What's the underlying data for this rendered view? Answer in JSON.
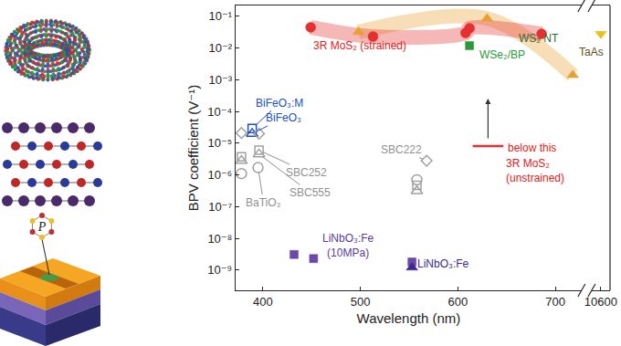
{
  "chart_data": {
    "type": "scatter",
    "x_label": "Wavelength (nm)",
    "y_label": "BPV coefficient (V⁻¹)",
    "log": "y",
    "grid": false,
    "xlim": [
      372,
      727
    ],
    "xticks": [
      400,
      500,
      600,
      700
    ],
    "x2lim": [
      10580,
      10620
    ],
    "x2ticks": [
      10600
    ],
    "ylim": [
      2.3e-10,
      0.22
    ],
    "yticks": [
      {
        "value": 1e-09,
        "label": "10⁻⁹"
      },
      {
        "value": 1e-08,
        "label": "10⁻⁸"
      },
      {
        "value": 1e-07,
        "label": "10⁻⁷"
      },
      {
        "value": 1e-06,
        "label": "10⁻⁶"
      },
      {
        "value": 1e-05,
        "label": "10⁻⁵"
      },
      {
        "value": 0.0001,
        "label": "10⁻⁴"
      },
      {
        "value": 0.001,
        "label": "10⁻³"
      },
      {
        "value": 0.01,
        "label": "10⁻²"
      },
      {
        "value": 0.1,
        "label": "10⁻¹"
      }
    ],
    "series": [
      {
        "name": "WS₂ NT",
        "color": "#e8a030",
        "marker": "triangle-up",
        "line_style": "band",
        "x": [
          498,
          630,
          718
        ],
        "values": [
          0.032,
          0.085,
          0.0014
        ]
      },
      {
        "name": "3R MoS₂ (strained)",
        "color": "#e53030",
        "marker": "circle",
        "line_style": "band",
        "x": [
          449,
          513,
          608,
          612,
          686
        ],
        "values": [
          0.045,
          0.023,
          0.03,
          0.042,
          0.028
        ]
      },
      {
        "name": "WSe₂/BP",
        "color": "#2a9a3a",
        "marker": "square",
        "x": [
          612
        ],
        "values": [
          0.012
        ]
      },
      {
        "name": "TaAs",
        "color": "#e8c020",
        "marker": "triangle-down",
        "axis": "x2",
        "x": [
          10600
        ],
        "values": [
          0.028
        ]
      },
      {
        "name": "BiFeO₃:M",
        "color": "#2050c0",
        "marker": "square-open",
        "x": [
          389
        ],
        "values": [
          2.9e-05
        ]
      },
      {
        "name": "BiFeO₃",
        "color": "#2050c0",
        "marker": "triangle-up-open",
        "x": [
          389
        ],
        "values": [
          2e-05
        ]
      },
      {
        "name": "SBC222",
        "color": "#a0a0a0",
        "marker": "diamond-open",
        "x": [
          378,
          396,
          568
        ],
        "values": [
          2.1e-05,
          2e-05,
          2.8e-06
        ]
      },
      {
        "name": "SBC252",
        "color": "#a0a0a0",
        "marker": "square-open",
        "x": [
          378,
          396,
          558
        ],
        "values": [
          3.7e-06,
          6e-06,
          4.7e-07
        ]
      },
      {
        "name": "SBC555",
        "color": "#a0a0a0",
        "marker": "triangle-up-open",
        "x": [
          378,
          396,
          558
        ],
        "values": [
          2.8e-06,
          4.5e-06,
          3.1e-07
        ]
      },
      {
        "name": "BaTiO₃",
        "color": "#a0a0a0",
        "marker": "circle-open",
        "x": [
          378,
          395,
          558
        ],
        "values": [
          1.1e-06,
          1.7e-06,
          7e-07
        ]
      },
      {
        "name": "LiNbO₃:Fe (10MPa)",
        "color": "#6a4aa8",
        "marker": "square",
        "x": [
          432,
          452,
          553
        ],
        "values": [
          3.1e-09,
          2.3e-09,
          1.8e-09
        ]
      },
      {
        "name": "LiNbO₃:Fe",
        "color": "#3a2a90",
        "marker": "triangle-up",
        "x": [
          553
        ],
        "values": [
          1.2e-09
        ]
      },
      {
        "name": "3R MoS₂ (unstrained)",
        "color": "#e53030",
        "marker": "line-ew",
        "x": [
          631
        ],
        "values": [
          8.1e-06
        ]
      }
    ],
    "annotations": [
      "below this"
    ]
  },
  "inset_text": "P"
}
